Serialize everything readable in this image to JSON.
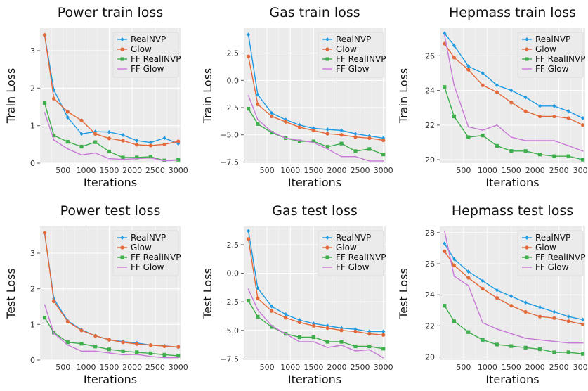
{
  "figure": {
    "panels": [
      "Power train loss",
      "Gas train loss",
      "Hepmass train loss",
      "Power test loss",
      "Gas test loss",
      "Hepmass test loss"
    ]
  },
  "colors": {
    "RealNVP": "#1f9ae0",
    "Glow": "#e2693a",
    "FF RealINVP": "#3fae4c",
    "FF Glow": "#c77ad6",
    "panel_bg": "#ebebeb",
    "grid": "#ffffff"
  },
  "chart_data": [
    {
      "type": "line",
      "title": "Power train loss",
      "xlabel": "Iterations",
      "ylabel": "Train Loss",
      "x": [
        100,
        300,
        600,
        900,
        1200,
        1500,
        1800,
        2100,
        2400,
        2700,
        3000
      ],
      "xlim": [
        0,
        3050
      ],
      "ylim": [
        0,
        3.6
      ],
      "xticks": [
        500,
        1000,
        1500,
        2000,
        2500,
        3000
      ],
      "yticks": [
        0,
        1,
        2,
        3
      ],
      "grid": true,
      "legend": "top-right",
      "series": [
        {
          "name": "RealNVP",
          "values": [
            3.4,
            1.95,
            1.22,
            0.78,
            0.84,
            0.83,
            0.75,
            0.6,
            0.55,
            0.67,
            0.52
          ]
        },
        {
          "name": "Glow",
          "values": [
            3.42,
            1.72,
            1.37,
            1.14,
            0.78,
            0.66,
            0.6,
            0.49,
            0.47,
            0.5,
            0.58
          ]
        },
        {
          "name": "FF RealINVP",
          "values": [
            1.6,
            0.74,
            0.57,
            0.44,
            0.56,
            0.31,
            0.15,
            0.15,
            0.17,
            0.07,
            0.09
          ]
        },
        {
          "name": "FF Glow",
          "values": [
            1.35,
            0.62,
            0.38,
            0.22,
            0.27,
            0.12,
            0.1,
            0.12,
            0.14,
            0.06,
            0.08
          ]
        }
      ]
    },
    {
      "type": "line",
      "title": "Gas train loss",
      "xlabel": "Iterations",
      "ylabel": "Train Loss",
      "x": [
        100,
        300,
        600,
        900,
        1200,
        1500,
        1800,
        2100,
        2400,
        2700,
        3000
      ],
      "xlim": [
        0,
        3050
      ],
      "ylim": [
        -7.6,
        4.8
      ],
      "xticks": [
        500,
        1000,
        1500,
        2000,
        2500,
        3000
      ],
      "yticks": [
        2.5,
        0.0,
        -2.5,
        -5.0,
        -7.5
      ],
      "ytick_labels": [
        "2.5",
        "0.0",
        "−2.5",
        "−5.0",
        "−7.5"
      ],
      "grid": true,
      "legend": "top-right",
      "series": [
        {
          "name": "RealNVP",
          "values": [
            4.2,
            -1.3,
            -3.0,
            -3.6,
            -4.1,
            -4.4,
            -4.5,
            -4.6,
            -4.9,
            -5.1,
            -5.3
          ]
        },
        {
          "name": "Glow",
          "values": [
            2.2,
            -2.2,
            -3.3,
            -3.8,
            -4.3,
            -4.6,
            -4.9,
            -5.0,
            -5.2,
            -5.3,
            -5.5
          ]
        },
        {
          "name": "FF RealINVP",
          "values": [
            -2.6,
            -4.0,
            -4.8,
            -5.3,
            -5.6,
            -5.6,
            -6.1,
            -5.8,
            -6.5,
            -6.3,
            -6.8
          ]
        },
        {
          "name": "FF Glow",
          "values": [
            -1.4,
            -3.6,
            -4.7,
            -5.3,
            -5.5,
            -5.7,
            -6.3,
            -7.0,
            -7.0,
            -7.4,
            -7.4
          ]
        }
      ]
    },
    {
      "type": "line",
      "title": "Hepmass train loss",
      "xlabel": "Iterations",
      "ylabel": "Train Loss",
      "x": [
        100,
        300,
        600,
        900,
        1200,
        1500,
        1800,
        2100,
        2400,
        2700,
        3000
      ],
      "xlim": [
        0,
        3050
      ],
      "ylim": [
        19.8,
        27.6
      ],
      "xticks": [
        500,
        1000,
        1500,
        2000,
        2500,
        3000
      ],
      "yticks": [
        20,
        22,
        24,
        26
      ],
      "grid": true,
      "legend": "top-right",
      "series": [
        {
          "name": "RealNVP",
          "values": [
            27.3,
            26.6,
            25.4,
            25.0,
            24.3,
            24.0,
            23.6,
            23.1,
            23.1,
            22.8,
            22.4
          ]
        },
        {
          "name": "Glow",
          "values": [
            26.7,
            25.9,
            25.2,
            24.3,
            23.9,
            23.3,
            22.8,
            22.5,
            22.5,
            22.4,
            22.0
          ]
        },
        {
          "name": "FF RealINVP",
          "values": [
            24.2,
            22.5,
            21.3,
            21.4,
            20.8,
            20.5,
            20.5,
            20.3,
            20.2,
            20.2,
            20.0
          ]
        },
        {
          "name": "FF Glow",
          "values": [
            27.2,
            24.3,
            21.9,
            21.7,
            22.0,
            21.3,
            21.1,
            21.1,
            21.1,
            20.8,
            20.5
          ]
        }
      ]
    },
    {
      "type": "line",
      "title": "Power test loss",
      "xlabel": "Iterations",
      "ylabel": "Test Loss",
      "x": [
        100,
        300,
        600,
        900,
        1200,
        1500,
        1800,
        2100,
        2400,
        2700,
        3000
      ],
      "xlim": [
        0,
        3050
      ],
      "ylim": [
        0,
        3.75
      ],
      "xticks": [
        500,
        1000,
        1500,
        2000,
        2500,
        3000
      ],
      "yticks": [
        0,
        1,
        2,
        3
      ],
      "grid": true,
      "legend": "top-right",
      "series": [
        {
          "name": "RealNVP",
          "values": [
            3.55,
            1.72,
            1.1,
            0.85,
            0.68,
            0.57,
            0.52,
            0.48,
            0.42,
            0.4,
            0.36
          ]
        },
        {
          "name": "Glow",
          "values": [
            3.57,
            1.65,
            1.08,
            0.83,
            0.68,
            0.57,
            0.5,
            0.45,
            0.42,
            0.39,
            0.37
          ]
        },
        {
          "name": "FF RealINVP",
          "values": [
            1.19,
            0.77,
            0.5,
            0.46,
            0.38,
            0.3,
            0.25,
            0.22,
            0.19,
            0.15,
            0.12
          ]
        },
        {
          "name": "FF Glow",
          "values": [
            1.55,
            0.75,
            0.42,
            0.25,
            0.25,
            0.2,
            0.15,
            0.16,
            0.1,
            0.07,
            0.07
          ]
        }
      ]
    },
    {
      "type": "line",
      "title": "Gas test loss",
      "xlabel": "Iterations",
      "ylabel": "Test Loss",
      "x": [
        100,
        300,
        600,
        900,
        1200,
        1500,
        1800,
        2100,
        2400,
        2700,
        3000
      ],
      "xlim": [
        0,
        3050
      ],
      "ylim": [
        -7.6,
        4.1
      ],
      "xticks": [
        500,
        1000,
        1500,
        2000,
        2500,
        3000
      ],
      "yticks": [
        2.5,
        0.0,
        -2.5,
        -5.0,
        -7.5
      ],
      "ytick_labels": [
        "2.5",
        "0.0",
        "−2.5",
        "−5.0",
        "−7.5"
      ],
      "grid": true,
      "legend": "top-right",
      "series": [
        {
          "name": "RealNVP",
          "values": [
            3.7,
            -1.3,
            -2.9,
            -3.6,
            -4.1,
            -4.4,
            -4.6,
            -4.8,
            -4.9,
            -5.1,
            -5.1
          ]
        },
        {
          "name": "Glow",
          "values": [
            3.0,
            -2.2,
            -3.3,
            -3.9,
            -4.3,
            -4.6,
            -4.8,
            -5.0,
            -5.1,
            -5.3,
            -5.4
          ]
        },
        {
          "name": "FF RealINVP",
          "values": [
            -2.4,
            -3.8,
            -4.7,
            -5.3,
            -5.6,
            -5.6,
            -6.0,
            -6.0,
            -6.4,
            -6.4,
            -6.6
          ]
        },
        {
          "name": "FF Glow",
          "values": [
            -1.4,
            -3.2,
            -4.6,
            -5.3,
            -6.0,
            -6.0,
            -6.5,
            -6.3,
            -6.8,
            -6.7,
            -7.4
          ]
        }
      ]
    },
    {
      "type": "line",
      "title": "Hepmass test loss",
      "xlabel": "Iterations",
      "ylabel": "Test Loss",
      "x": [
        100,
        300,
        600,
        900,
        1200,
        1500,
        1800,
        2100,
        2400,
        2700,
        3000
      ],
      "xlim": [
        0,
        3050
      ],
      "ylim": [
        19.8,
        28.4
      ],
      "xticks": [
        500,
        1000,
        1500,
        2000,
        2500,
        3000
      ],
      "yticks": [
        20,
        22,
        24,
        26,
        28
      ],
      "grid": true,
      "legend": "top-right",
      "series": [
        {
          "name": "RealNVP",
          "values": [
            27.3,
            26.3,
            25.5,
            24.9,
            24.3,
            23.9,
            23.5,
            23.2,
            22.9,
            22.6,
            22.4
          ]
        },
        {
          "name": "Glow",
          "values": [
            26.8,
            25.9,
            25.1,
            24.4,
            23.8,
            23.3,
            22.9,
            22.6,
            22.5,
            22.3,
            22.1
          ]
        },
        {
          "name": "FF RealINVP",
          "values": [
            23.3,
            22.3,
            21.6,
            21.1,
            20.8,
            20.7,
            20.6,
            20.5,
            20.3,
            20.3,
            20.2
          ]
        },
        {
          "name": "FF Glow",
          "values": [
            28.1,
            25.2,
            24.6,
            22.2,
            21.8,
            21.5,
            21.2,
            21.1,
            21.0,
            20.9,
            20.9
          ]
        }
      ]
    }
  ]
}
